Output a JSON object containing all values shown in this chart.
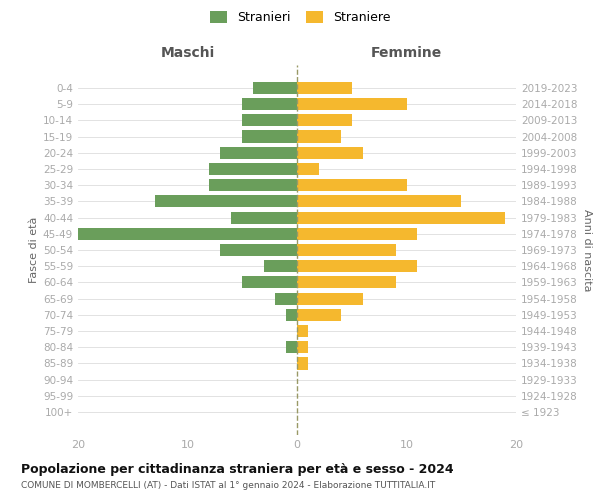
{
  "age_groups": [
    "100+",
    "95-99",
    "90-94",
    "85-89",
    "80-84",
    "75-79",
    "70-74",
    "65-69",
    "60-64",
    "55-59",
    "50-54",
    "45-49",
    "40-44",
    "35-39",
    "30-34",
    "25-29",
    "20-24",
    "15-19",
    "10-14",
    "5-9",
    "0-4"
  ],
  "birth_years": [
    "≤ 1923",
    "1924-1928",
    "1929-1933",
    "1934-1938",
    "1939-1943",
    "1944-1948",
    "1949-1953",
    "1954-1958",
    "1959-1963",
    "1964-1968",
    "1969-1973",
    "1974-1978",
    "1979-1983",
    "1984-1988",
    "1989-1993",
    "1994-1998",
    "1999-2003",
    "2004-2008",
    "2009-2013",
    "2014-2018",
    "2019-2023"
  ],
  "maschi": [
    0,
    0,
    0,
    0,
    1,
    0,
    1,
    2,
    5,
    3,
    7,
    20,
    6,
    13,
    8,
    8,
    7,
    5,
    5,
    5,
    4
  ],
  "femmine": [
    0,
    0,
    0,
    1,
    1,
    1,
    4,
    6,
    9,
    11,
    9,
    11,
    19,
    15,
    10,
    2,
    6,
    4,
    5,
    10,
    5
  ],
  "color_maschi": "#6a9e5b",
  "color_femmine": "#f5b82e",
  "title": "Popolazione per cittadinanza straniera per età e sesso - 2024",
  "subtitle": "COMUNE DI MOMBERCELLI (AT) - Dati ISTAT al 1° gennaio 2024 - Elaborazione TUTTITALIA.IT",
  "label_maschi": "Maschi",
  "label_femmine": "Femmine",
  "ylabel_left": "Fasce di età",
  "ylabel_right": "Anni di nascita",
  "xlim": 20,
  "legend_stranieri": "Stranieri",
  "legend_straniere": "Straniere",
  "bg_color": "#ffffff",
  "grid_color": "#dddddd",
  "tick_color": "#aaaaaa",
  "section_label_color": "#555555",
  "title_color": "#111111",
  "subtitle_color": "#555555"
}
